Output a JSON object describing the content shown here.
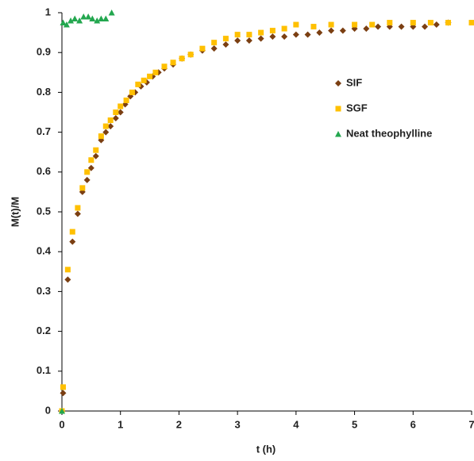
{
  "chart_data": {
    "type": "scatter",
    "x_label": "t (h)",
    "y_label": "M(t)/M",
    "xlim": [
      0,
      7
    ],
    "xticks": [
      0,
      1,
      2,
      3,
      4,
      5,
      6,
      7
    ],
    "ylim": [
      0,
      1
    ],
    "yticks": [
      0,
      0.1,
      0.2,
      0.3,
      0.4,
      0.5,
      0.6,
      0.7,
      0.8,
      0.9,
      1
    ],
    "grid": false,
    "legend": "upper right",
    "series": [
      {
        "name": "SIF",
        "color": "#7b3f12",
        "marker": "diamond",
        "x": [
          0,
          0.02,
          0.1,
          0.18,
          0.27,
          0.35,
          0.43,
          0.5,
          0.58,
          0.67,
          0.75,
          0.83,
          0.92,
          1.0,
          1.08,
          1.17,
          1.25,
          1.35,
          1.45,
          1.55,
          1.65,
          1.75,
          1.9,
          2.05,
          2.2,
          2.4,
          2.6,
          2.8,
          3.0,
          3.2,
          3.4,
          3.6,
          3.8,
          4.0,
          4.2,
          4.4,
          4.6,
          4.8,
          5.0,
          5.2,
          5.4,
          5.6,
          5.8,
          6.0,
          6.2,
          6.4,
          6.6
        ],
        "values": [
          0,
          0.045,
          0.33,
          0.425,
          0.495,
          0.55,
          0.58,
          0.61,
          0.64,
          0.68,
          0.7,
          0.715,
          0.735,
          0.75,
          0.77,
          0.79,
          0.8,
          0.815,
          0.825,
          0.84,
          0.85,
          0.86,
          0.87,
          0.885,
          0.895,
          0.905,
          0.91,
          0.92,
          0.93,
          0.93,
          0.935,
          0.94,
          0.94,
          0.945,
          0.945,
          0.95,
          0.955,
          0.955,
          0.96,
          0.96,
          0.965,
          0.965,
          0.965,
          0.965,
          0.965,
          0.97,
          0.975
        ]
      },
      {
        "name": "SGF",
        "color": "#ffc000",
        "marker": "square",
        "x": [
          0,
          0.02,
          0.1,
          0.18,
          0.27,
          0.35,
          0.43,
          0.5,
          0.58,
          0.67,
          0.75,
          0.83,
          0.92,
          1.0,
          1.1,
          1.2,
          1.3,
          1.4,
          1.5,
          1.6,
          1.75,
          1.9,
          2.05,
          2.2,
          2.4,
          2.6,
          2.8,
          3.0,
          3.2,
          3.4,
          3.6,
          3.8,
          4.0,
          4.3,
          4.6,
          5.0,
          5.3,
          5.6,
          6.0,
          6.3,
          6.6,
          7.0
        ],
        "values": [
          0,
          0.06,
          0.355,
          0.45,
          0.51,
          0.56,
          0.6,
          0.63,
          0.655,
          0.69,
          0.715,
          0.73,
          0.75,
          0.765,
          0.78,
          0.8,
          0.82,
          0.83,
          0.84,
          0.85,
          0.865,
          0.875,
          0.885,
          0.895,
          0.91,
          0.925,
          0.935,
          0.945,
          0.945,
          0.95,
          0.955,
          0.96,
          0.97,
          0.965,
          0.97,
          0.97,
          0.97,
          0.975,
          0.975,
          0.975,
          0.975,
          0.975
        ]
      },
      {
        "name": "Neat theophylline",
        "color": "#23a74f",
        "marker": "triangle",
        "x": [
          0,
          0.02,
          0.08,
          0.15,
          0.22,
          0.3,
          0.37,
          0.45,
          0.52,
          0.6,
          0.67,
          0.75,
          0.85
        ],
        "values": [
          0,
          0.975,
          0.97,
          0.98,
          0.985,
          0.98,
          0.99,
          0.99,
          0.985,
          0.98,
          0.985,
          0.985,
          1.0
        ]
      }
    ]
  }
}
